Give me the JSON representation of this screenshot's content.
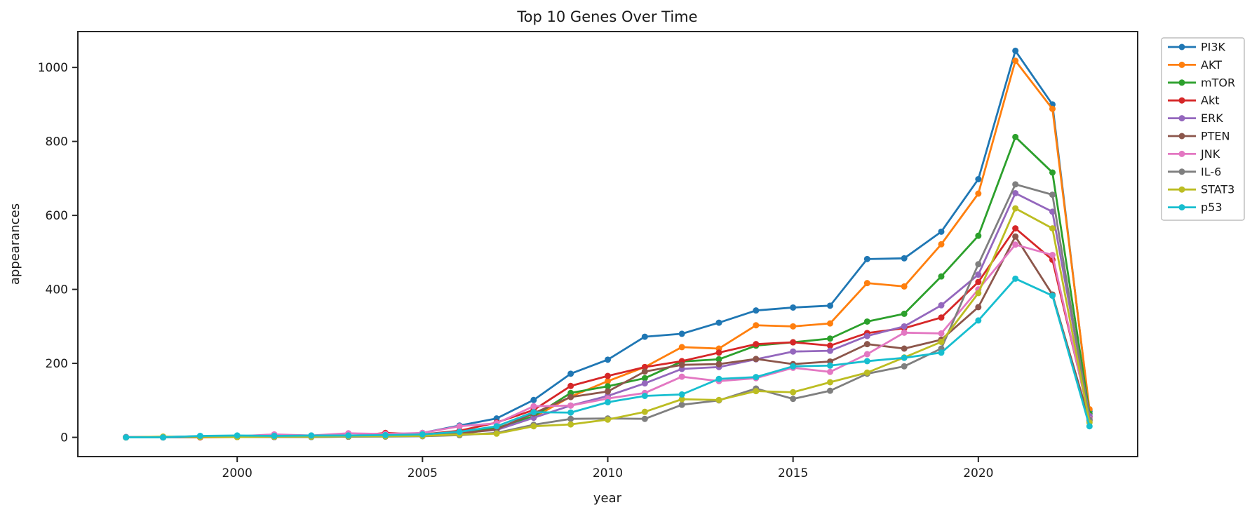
{
  "chart_data": {
    "type": "line",
    "title": "Top 10 Genes Over Time",
    "xlabel": "year",
    "ylabel": "appearances",
    "x": [
      1997,
      1998,
      1999,
      2000,
      2001,
      2002,
      2003,
      2004,
      2005,
      2006,
      2007,
      2008,
      2009,
      2010,
      2011,
      2012,
      2013,
      2014,
      2015,
      2016,
      2017,
      2018,
      2019,
      2020,
      2021,
      2022,
      2023
    ],
    "series": [
      {
        "name": "PI3K",
        "color": "#1f77b4",
        "values": [
          0,
          1,
          3,
          3,
          2,
          3,
          4,
          6,
          12,
          32,
          51,
          101,
          172,
          210,
          272,
          280,
          310,
          343,
          351,
          356,
          482,
          484,
          556,
          698,
          1045,
          900,
          70
        ]
      },
      {
        "name": "AKT",
        "color": "#ff7f0e",
        "values": [
          0,
          0,
          1,
          1,
          2,
          2,
          3,
          4,
          8,
          15,
          22,
          54,
          110,
          152,
          190,
          244,
          240,
          303,
          300,
          308,
          417,
          408,
          522,
          659,
          1018,
          888,
          76
        ]
      },
      {
        "name": "mTOR",
        "color": "#2ca02c",
        "values": [
          0,
          0,
          1,
          1,
          1,
          1,
          2,
          3,
          5,
          12,
          25,
          57,
          120,
          138,
          160,
          205,
          211,
          248,
          257,
          267,
          313,
          334,
          435,
          545,
          812,
          716,
          64
        ]
      },
      {
        "name": "Akt",
        "color": "#d62728",
        "values": [
          0,
          0,
          0,
          1,
          1,
          2,
          2,
          12,
          8,
          18,
          40,
          74,
          139,
          166,
          190,
          206,
          229,
          252,
          257,
          248,
          282,
          295,
          324,
          420,
          565,
          480,
          55
        ]
      },
      {
        "name": "ERK",
        "color": "#9467bd",
        "values": [
          1,
          1,
          2,
          2,
          3,
          3,
          4,
          5,
          7,
          12,
          20,
          53,
          86,
          112,
          146,
          185,
          190,
          211,
          232,
          234,
          274,
          300,
          357,
          440,
          660,
          610,
          58
        ]
      },
      {
        "name": "PTEN",
        "color": "#8c564b",
        "values": [
          0,
          0,
          1,
          1,
          1,
          2,
          2,
          3,
          5,
          10,
          22,
          65,
          109,
          124,
          178,
          196,
          198,
          212,
          198,
          205,
          252,
          240,
          264,
          352,
          543,
          386,
          45
        ]
      },
      {
        "name": "JNK",
        "color": "#e377c2",
        "values": [
          0,
          0,
          1,
          3,
          8,
          5,
          11,
          9,
          12,
          30,
          38,
          84,
          86,
          105,
          120,
          164,
          152,
          160,
          188,
          177,
          225,
          283,
          281,
          400,
          521,
          493,
          50
        ]
      },
      {
        "name": "IL-6",
        "color": "#7f7f7f",
        "values": [
          0,
          0,
          1,
          1,
          1,
          1,
          2,
          2,
          3,
          6,
          12,
          34,
          50,
          51,
          50,
          88,
          100,
          132,
          104,
          126,
          172,
          192,
          240,
          468,
          684,
          656,
          48
        ]
      },
      {
        "name": "STAT3",
        "color": "#bcbd22",
        "values": [
          0,
          2,
          1,
          1,
          2,
          2,
          3,
          3,
          4,
          8,
          10,
          30,
          35,
          48,
          69,
          103,
          101,
          125,
          122,
          149,
          175,
          216,
          258,
          390,
          619,
          565,
          40
        ]
      },
      {
        "name": "p53",
        "color": "#17becf",
        "values": [
          0,
          0,
          4,
          5,
          4,
          5,
          5,
          6,
          8,
          15,
          30,
          68,
          67,
          95,
          112,
          116,
          158,
          163,
          192,
          194,
          206,
          215,
          229,
          316,
          429,
          383,
          30
        ]
      }
    ],
    "x_ticks": [
      2000,
      2005,
      2010,
      2015,
      2020
    ],
    "y_ticks": [
      0,
      200,
      400,
      600,
      800,
      1000
    ],
    "xlim": [
      1995.7,
      2024.3
    ],
    "ylim": [
      -52,
      1097
    ],
    "grid": false,
    "legend_position": "outside-right",
    "legend_labels": [
      "PI3K",
      "AKT",
      "mTOR",
      "Akt",
      "ERK",
      "PTEN",
      "JNK",
      "IL-6",
      "STAT3",
      "p53"
    ]
  }
}
